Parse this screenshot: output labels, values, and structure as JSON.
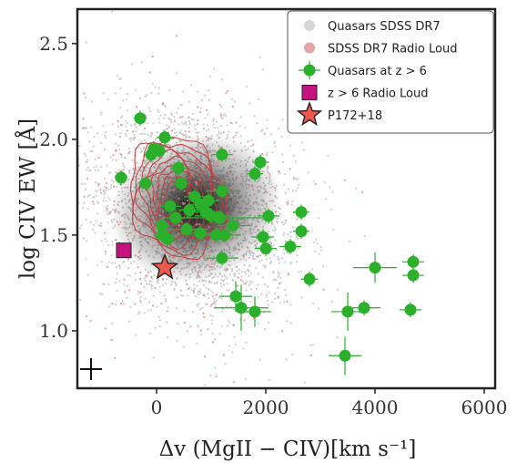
{
  "chart_data": {
    "type": "scatter",
    "xlabel": "Δv (MgII − CIV)[km s⁻¹]",
    "ylabel": "log CIV EW [Å]",
    "xlim": [
      -1450,
      6200
    ],
    "ylim": [
      0.7,
      2.68
    ],
    "xticks": [
      "0",
      "2000",
      "4000",
      "6000"
    ],
    "yticks": [
      "1.0",
      "1.5",
      "2.0",
      "2.5"
    ],
    "legend_position": "top-right",
    "grid": false,
    "colors": {
      "background_points": "#bdbdbd",
      "radio_loud_points": "#d9868a",
      "contour": "#c0393b",
      "z6": "#2ab02a",
      "z6_radio": "#c4127e",
      "p172": "#ef5a4f",
      "frame": "#222222"
    },
    "legend": [
      {
        "label": "Quasars SDSS DR7",
        "marker": "circle-faint"
      },
      {
        "label": "SDSS DR7 Radio Loud",
        "marker": "circle-red"
      },
      {
        "label": "Quasars at z > 6",
        "marker": "circle-green-err"
      },
      {
        "label": "z > 6 Radio Loud",
        "marker": "square-magenta"
      },
      {
        "label": "P172+18",
        "marker": "star-red"
      }
    ],
    "series": [
      {
        "name": "Quasars at z > 6",
        "points": [
          {
            "x": -300,
            "y": 2.11,
            "xerr": 120,
            "yerr": 0.04
          },
          {
            "x": 150,
            "y": 2.01,
            "xerr": 150,
            "yerr": 0.04
          },
          {
            "x": -100,
            "y": 1.92,
            "xerr": 120,
            "yerr": 0.04
          },
          {
            "x": -50,
            "y": 1.95,
            "xerr": 120,
            "yerr": 0.04
          },
          {
            "x": 50,
            "y": 1.94,
            "xerr": 120,
            "yerr": 0.04
          },
          {
            "x": -650,
            "y": 1.8,
            "xerr": 120,
            "yerr": 0.04
          },
          {
            "x": 400,
            "y": 1.85,
            "xerr": 150,
            "yerr": 0.04
          },
          {
            "x": -200,
            "y": 1.77,
            "xerr": 120,
            "yerr": 0.04
          },
          {
            "x": 450,
            "y": 1.77,
            "xerr": 150,
            "yerr": 0.04
          },
          {
            "x": 700,
            "y": 1.7,
            "xerr": 200,
            "yerr": 0.04
          },
          {
            "x": 800,
            "y": 1.66,
            "xerr": 200,
            "yerr": 0.04
          },
          {
            "x": 950,
            "y": 1.68,
            "xerr": 200,
            "yerr": 0.04
          },
          {
            "x": 1200,
            "y": 1.73,
            "xerr": 300,
            "yerr": 0.04
          },
          {
            "x": 1200,
            "y": 1.92,
            "xerr": 200,
            "yerr": 0.04
          },
          {
            "x": 250,
            "y": 1.65,
            "xerr": 200,
            "yerr": 0.04
          },
          {
            "x": 600,
            "y": 1.63,
            "xerr": 200,
            "yerr": 0.04
          },
          {
            "x": 900,
            "y": 1.62,
            "xerr": 300,
            "yerr": 0.04
          },
          {
            "x": 1150,
            "y": 1.59,
            "xerr": 800,
            "yerr": 0.04
          },
          {
            "x": 350,
            "y": 1.59,
            "xerr": 200,
            "yerr": 0.04
          },
          {
            "x": 1000,
            "y": 1.6,
            "xerr": 300,
            "yerr": 0.04
          },
          {
            "x": 100,
            "y": 1.55,
            "xerr": 150,
            "yerr": 0.04
          },
          {
            "x": 550,
            "y": 1.53,
            "xerr": 400,
            "yerr": 0.04
          },
          {
            "x": 800,
            "y": 1.51,
            "xerr": 400,
            "yerr": 0.04
          },
          {
            "x": 1100,
            "y": 1.5,
            "xerr": 300,
            "yerr": 0.04
          },
          {
            "x": 1250,
            "y": 1.5,
            "xerr": 300,
            "yerr": 0.04
          },
          {
            "x": 1400,
            "y": 1.55,
            "xerr": 300,
            "yerr": 0.04
          },
          {
            "x": 100,
            "y": 1.5,
            "xerr": 150,
            "yerr": 0.04
          },
          {
            "x": 200,
            "y": 1.48,
            "xerr": 150,
            "yerr": 0.04
          },
          {
            "x": 1200,
            "y": 1.38,
            "xerr": 300,
            "yerr": 0.04
          },
          {
            "x": 1800,
            "y": 1.82,
            "xerr": 150,
            "yerr": 0.04
          },
          {
            "x": 1900,
            "y": 1.88,
            "xerr": 150,
            "yerr": 0.04
          },
          {
            "x": 2050,
            "y": 1.6,
            "xerr": 200,
            "yerr": 0.04
          },
          {
            "x": 1950,
            "y": 1.49,
            "xerr": 200,
            "yerr": 0.04
          },
          {
            "x": 2000,
            "y": 1.43,
            "xerr": 200,
            "yerr": 0.04
          },
          {
            "x": 2450,
            "y": 1.44,
            "xerr": 200,
            "yerr": 0.04
          },
          {
            "x": 2650,
            "y": 1.62,
            "xerr": 150,
            "yerr": 0.04
          },
          {
            "x": 2650,
            "y": 1.52,
            "xerr": 150,
            "yerr": 0.04
          },
          {
            "x": 2800,
            "y": 1.27,
            "xerr": 150,
            "yerr": 0.04
          },
          {
            "x": 1450,
            "y": 1.18,
            "xerr": 300,
            "yerr": 0.08
          },
          {
            "x": 1550,
            "y": 1.12,
            "xerr": 500,
            "yerr": 0.12
          },
          {
            "x": 1800,
            "y": 1.1,
            "xerr": 300,
            "yerr": 0.08
          },
          {
            "x": 3500,
            "y": 1.1,
            "xerr": 300,
            "yerr": 0.1
          },
          {
            "x": 3800,
            "y": 1.12,
            "xerr": 300,
            "yerr": 0.04
          },
          {
            "x": 4000,
            "y": 1.33,
            "xerr": 400,
            "yerr": 0.08
          },
          {
            "x": 3450,
            "y": 0.87,
            "xerr": 300,
            "yerr": 0.1
          },
          {
            "x": 4700,
            "y": 1.36,
            "xerr": 200,
            "yerr": 0.04
          },
          {
            "x": 4700,
            "y": 1.29,
            "xerr": 200,
            "yerr": 0.04
          },
          {
            "x": 4650,
            "y": 1.11,
            "xerr": 200,
            "yerr": 0.04
          }
        ]
      },
      {
        "name": "z > 6 Radio Loud",
        "points": [
          {
            "x": -600,
            "y": 1.42
          }
        ]
      },
      {
        "name": "P172+18",
        "points": [
          {
            "x": 150,
            "y": 1.33
          }
        ]
      }
    ],
    "error_glyph": {
      "x": -1200,
      "y": 0.8
    }
  }
}
